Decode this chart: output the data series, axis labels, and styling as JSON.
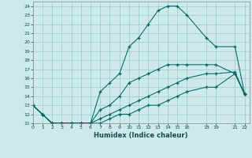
{
  "xlabel": "Humidex (Indice chaleur)",
  "background_color": "#cceaea",
  "grid_color": "#aacccc",
  "line_color": "#006666",
  "lines": [
    {
      "x": [
        0,
        1,
        2,
        3,
        4,
        5,
        6,
        7,
        8,
        9,
        10,
        11,
        12,
        13,
        14,
        15,
        16,
        18,
        19,
        21,
        22
      ],
      "y": [
        13,
        12,
        11,
        11,
        11,
        11,
        11,
        14.5,
        15.5,
        16.5,
        19.5,
        20.5,
        22,
        23.5,
        24,
        24,
        23,
        20.5,
        19.5,
        19.5,
        14.2
      ]
    },
    {
      "x": [
        0,
        1,
        2,
        3,
        4,
        5,
        6,
        7,
        8,
        9,
        10,
        11,
        12,
        13,
        14,
        15,
        16,
        18,
        19,
        21,
        22
      ],
      "y": [
        13,
        12,
        11,
        11,
        11,
        11,
        11,
        12.5,
        13,
        14,
        15.5,
        16,
        16.5,
        17,
        17.5,
        17.5,
        17.5,
        17.5,
        17.5,
        16.5,
        14.2
      ]
    },
    {
      "x": [
        0,
        1,
        2,
        3,
        4,
        5,
        6,
        7,
        8,
        9,
        10,
        11,
        12,
        13,
        14,
        15,
        16,
        18,
        19,
        21,
        22
      ],
      "y": [
        13,
        12,
        11,
        11,
        11,
        11,
        11,
        11.5,
        12,
        12.5,
        13,
        13.5,
        14,
        14.5,
        15,
        15.5,
        16,
        16.5,
        16.5,
        16.7,
        14.2
      ]
    },
    {
      "x": [
        0,
        1,
        2,
        3,
        4,
        5,
        6,
        7,
        8,
        9,
        10,
        11,
        12,
        13,
        14,
        15,
        16,
        18,
        19,
        21,
        22
      ],
      "y": [
        13,
        12,
        11,
        11,
        11,
        11,
        11,
        11,
        11.5,
        12,
        12,
        12.5,
        13,
        13,
        13.5,
        14,
        14.5,
        15,
        15,
        16.5,
        14.2
      ]
    }
  ],
  "xlim": [
    0,
    22.5
  ],
  "ylim": [
    11,
    24.5
  ],
  "yticks": [
    11,
    12,
    13,
    14,
    15,
    16,
    17,
    18,
    19,
    20,
    21,
    22,
    23,
    24
  ],
  "xtick_positions": [
    0,
    1,
    2,
    3,
    4,
    5,
    6,
    7,
    8,
    9,
    10,
    11,
    12,
    13,
    14,
    15,
    16,
    18,
    19,
    21,
    22
  ],
  "xtick_labels": [
    "0",
    "1",
    "2",
    "3",
    "4",
    "5",
    "6",
    "7",
    "8",
    "9",
    "10",
    "11",
    "12",
    "13",
    "14",
    "15",
    "16",
    "18",
    "19",
    "21",
    "22"
  ]
}
